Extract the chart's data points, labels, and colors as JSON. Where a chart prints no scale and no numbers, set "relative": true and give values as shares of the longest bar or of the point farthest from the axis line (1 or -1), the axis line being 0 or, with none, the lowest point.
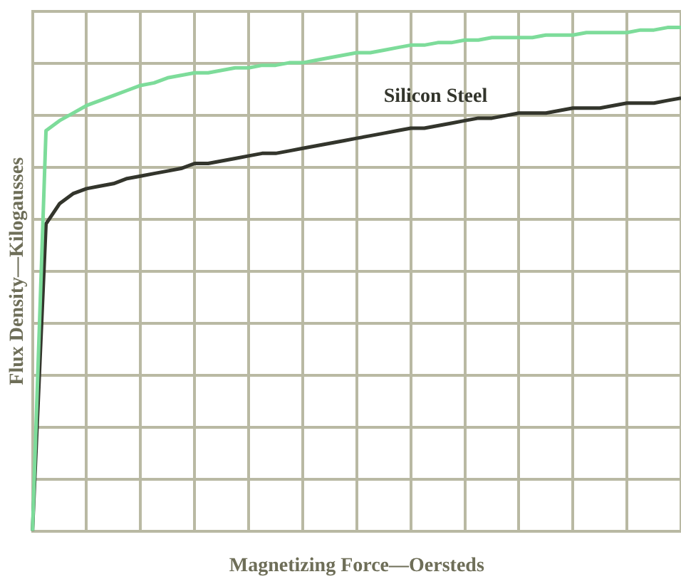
{
  "chart_data": {
    "type": "line",
    "xlabel": "Magnetizing Force—Oersteds",
    "ylabel": "Flux Density—Kilogausses",
    "relative": true,
    "grid": true,
    "legend": false,
    "marker": "none",
    "line_style": "solid",
    "categories": [
      null,
      null,
      null,
      null,
      null,
      null,
      null,
      null,
      null,
      null,
      null,
      null,
      null,
      null,
      null,
      null,
      null,
      null,
      null,
      null,
      null,
      null,
      null,
      null,
      null,
      null,
      null,
      null,
      null,
      null,
      null,
      null,
      null,
      null,
      null,
      null,
      null,
      null,
      null,
      null,
      null,
      null,
      null,
      null,
      null,
      null,
      null,
      null,
      null
    ],
    "series": [
      {
        "color": "#7ddc9a",
        "values": [
          0,
          0.795,
          0.815,
          0.83,
          0.845,
          0.855,
          0.865,
          0.875,
          0.885,
          0.89,
          0.9,
          0.905,
          0.91,
          0.91,
          0.915,
          0.92,
          0.92,
          0.925,
          0.925,
          0.93,
          0.93,
          0.935,
          0.94,
          0.945,
          0.95,
          0.95,
          0.955,
          0.96,
          0.965,
          0.965,
          0.97,
          0.97,
          0.975,
          0.975,
          0.98,
          0.98,
          0.98,
          0.98,
          0.985,
          0.985,
          0.985,
          0.99,
          0.99,
          0.99,
          0.99,
          0.995,
          0.995,
          1,
          1
        ]
      },
      {
        "name": "Silicon Steel",
        "color": "#33352c",
        "values": [
          0,
          0.61,
          0.65,
          0.67,
          0.68,
          0.685,
          0.69,
          0.7,
          0.705,
          0.71,
          0.715,
          0.72,
          0.73,
          0.73,
          0.735,
          0.74,
          0.745,
          0.75,
          0.75,
          0.755,
          0.76,
          0.765,
          0.77,
          0.775,
          0.78,
          0.785,
          0.79,
          0.795,
          0.8,
          0.8,
          0.805,
          0.81,
          0.815,
          0.82,
          0.82,
          0.825,
          0.83,
          0.83,
          0.83,
          0.835,
          0.84,
          0.84,
          0.84,
          0.845,
          0.85,
          0.85,
          0.85,
          0.855,
          0.86
        ]
      }
    ]
  }
}
